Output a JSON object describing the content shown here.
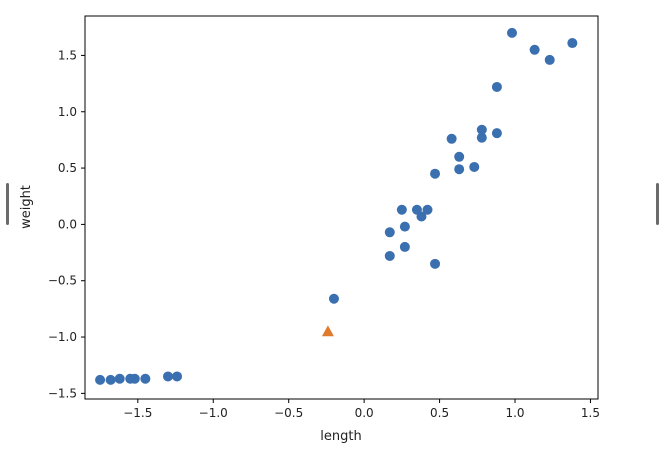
{
  "chart_data": {
    "type": "scatter",
    "title": "",
    "xlabel": "length",
    "ylabel": "weight",
    "xlim": [
      -1.85,
      1.55
    ],
    "ylim": [
      -1.55,
      1.85
    ],
    "xticks": [
      -1.5,
      -1.0,
      -0.5,
      0.0,
      0.5,
      1.0,
      1.5
    ],
    "yticks": [
      -1.5,
      -1.0,
      -0.5,
      0.0,
      0.5,
      1.0,
      1.5
    ],
    "xtick_labels": [
      "−1.5",
      "−1.0",
      "−0.5",
      "0.0",
      "0.5",
      "1.0",
      "1.5"
    ],
    "ytick_labels": [
      "−1.5",
      "−1.0",
      "−0.5",
      "0.0",
      "0.5",
      "1.0",
      "1.5"
    ],
    "grid": false,
    "series": [
      {
        "marker": "circle",
        "color": "#3a6fb0",
        "x": [
          -1.75,
          -1.68,
          -1.62,
          -1.55,
          -1.52,
          -1.45,
          -1.3,
          -1.24,
          -0.2,
          0.17,
          0.17,
          0.25,
          0.27,
          0.27,
          0.35,
          0.38,
          0.42,
          0.47,
          0.47,
          0.58,
          0.63,
          0.63,
          0.73,
          0.78,
          0.78,
          0.88,
          0.88,
          0.98,
          1.13,
          1.23,
          1.38
        ],
        "y": [
          -1.38,
          -1.38,
          -1.37,
          -1.37,
          -1.37,
          -1.37,
          -1.35,
          -1.35,
          -0.66,
          -0.07,
          -0.28,
          0.13,
          -0.02,
          -0.2,
          0.13,
          0.07,
          0.13,
          0.45,
          -0.35,
          0.76,
          0.6,
          0.49,
          0.51,
          0.84,
          0.77,
          0.81,
          1.22,
          1.7,
          1.55,
          1.46,
          1.61
        ]
      },
      {
        "marker": "triangle",
        "color": "#e07b2e",
        "x": [
          -0.24
        ],
        "y": [
          -0.95
        ]
      }
    ]
  }
}
